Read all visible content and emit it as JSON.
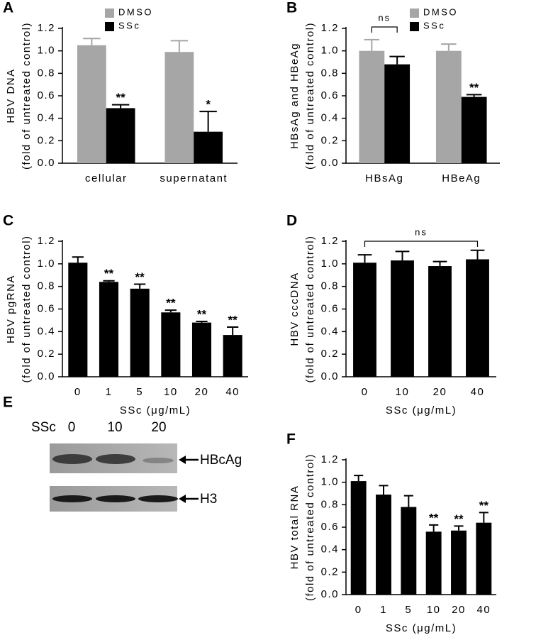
{
  "chart_data": [
    {
      "type": "bar",
      "panel": "A",
      "ylabel": "HBV DNA",
      "ylabel2": "(fold of untreated control)",
      "categories": [
        "cellular",
        "supernatant"
      ],
      "series": [
        {
          "name": "DMSO",
          "color": "#a6a6a6",
          "values": [
            1.05,
            0.99
          ],
          "errors": [
            0.06,
            0.1
          ],
          "significance": [
            null,
            null
          ]
        },
        {
          "name": "SSc",
          "color": "#000000",
          "values": [
            0.49,
            0.28
          ],
          "errors": [
            0.03,
            0.18
          ],
          "significance": [
            "**",
            "*"
          ]
        }
      ],
      "ylim": [
        0,
        1.2
      ],
      "yticks": [
        {
          "value": 0,
          "label": "0.0"
        },
        {
          "value": 0.2,
          "label": "0.2"
        },
        {
          "value": 0.4,
          "label": "0.4"
        },
        {
          "value": 0.6,
          "label": "0.6"
        },
        {
          "value": 0.8,
          "label": "0.8"
        },
        {
          "value": 1,
          "label": "1.0"
        },
        {
          "value": 1.2,
          "label": "1.2"
        }
      ],
      "legend": true
    },
    {
      "type": "bar",
      "panel": "B",
      "ylabel": "HBsAg and HBeAg",
      "ylabel2": "(fold of untreated control)",
      "categories": [
        "HBsAg",
        "HBeAg"
      ],
      "series": [
        {
          "name": "DMSO",
          "color": "#a6a6a6",
          "values": [
            1.0,
            1.0
          ],
          "errors": [
            0.1,
            0.06
          ],
          "significance": [
            null,
            null
          ]
        },
        {
          "name": "SSc",
          "color": "#000000",
          "values": [
            0.88,
            0.59
          ],
          "errors": [
            0.07,
            0.02
          ],
          "significance": [
            null,
            "**"
          ]
        }
      ],
      "ylim": [
        0,
        1.2
      ],
      "yticks": [
        {
          "value": 0,
          "label": "0.0"
        },
        {
          "value": 0.2,
          "label": "0.2"
        },
        {
          "value": 0.4,
          "label": "0.4"
        },
        {
          "value": 0.6,
          "label": "0.6"
        },
        {
          "value": 0.8,
          "label": "0.8"
        },
        {
          "value": 1,
          "label": "1.0"
        },
        {
          "value": 1.2,
          "label": "1.2"
        }
      ],
      "legend": true,
      "bracket_label": "ns"
    },
    {
      "type": "bar",
      "panel": "C",
      "ylabel": "HBV pgRNA",
      "ylabel2": "(fold of untreated control)",
      "xlabel": "SSc (μg/mL)",
      "categories": [
        "0",
        "1",
        "5",
        "10",
        "20",
        "40"
      ],
      "series": [
        {
          "color": "#000000",
          "values": [
            1.01,
            0.84,
            0.78,
            0.57,
            0.48,
            0.37
          ],
          "errors": [
            0.05,
            0.01,
            0.04,
            0.02,
            0.01,
            0.07
          ],
          "significance": [
            null,
            "**",
            "**",
            "**",
            "**",
            "**"
          ]
        }
      ],
      "ylim": [
        0,
        1.2
      ],
      "yticks": [
        {
          "value": 0,
          "label": "0.0"
        },
        {
          "value": 0.2,
          "label": "0.2"
        },
        {
          "value": 0.4,
          "label": "0.4"
        },
        {
          "value": 0.6,
          "label": "0.6"
        },
        {
          "value": 0.8,
          "label": "0.8"
        },
        {
          "value": 1,
          "label": "1.0"
        },
        {
          "value": 1.2,
          "label": "1.2"
        }
      ],
      "legend": false
    },
    {
      "type": "bar",
      "panel": "D",
      "ylabel": "HBV cccDNA",
      "ylabel2": "(fold of untreated control)",
      "xlabel": "SSc (μg/mL)",
      "categories": [
        "0",
        "10",
        "20",
        "40"
      ],
      "series": [
        {
          "color": "#000000",
          "values": [
            1.01,
            1.03,
            0.98,
            1.04
          ],
          "errors": [
            0.07,
            0.08,
            0.04,
            0.08
          ],
          "significance": [
            null,
            null,
            null,
            null
          ]
        }
      ],
      "ylim": [
        0,
        1.2
      ],
      "yticks": [
        {
          "value": 0,
          "label": "0.0"
        },
        {
          "value": 0.2,
          "label": "0.2"
        },
        {
          "value": 0.4,
          "label": "0.4"
        },
        {
          "value": 0.6,
          "label": "0.6"
        },
        {
          "value": 0.8,
          "label": "0.8"
        },
        {
          "value": 1,
          "label": "1.0"
        },
        {
          "value": 1.2,
          "label": "1.2"
        }
      ],
      "legend": false,
      "bracket_label": "ns"
    },
    {
      "type": "bar",
      "panel": "F",
      "ylabel": "HBV total RNA",
      "ylabel2": "(fold of untreated control)",
      "xlabel": "SSc (μg/mL)",
      "categories": [
        "0",
        "1",
        "5",
        "10",
        "20",
        "40"
      ],
      "series": [
        {
          "color": "#000000",
          "values": [
            1.01,
            0.89,
            0.78,
            0.56,
            0.57,
            0.64
          ],
          "errors": [
            0.05,
            0.08,
            0.1,
            0.06,
            0.04,
            0.09
          ],
          "significance": [
            null,
            null,
            null,
            "**",
            "**",
            "**"
          ]
        }
      ],
      "ylim": [
        0,
        1.2
      ],
      "yticks": [
        {
          "value": 0,
          "label": "0.0"
        },
        {
          "value": 0.2,
          "label": "0.2"
        },
        {
          "value": 0.4,
          "label": "0.4"
        },
        {
          "value": 0.6,
          "label": "0.6"
        },
        {
          "value": 0.8,
          "label": "0.8"
        },
        {
          "value": 1,
          "label": "1.0"
        },
        {
          "value": 1.2,
          "label": "1.2"
        }
      ],
      "legend": false
    }
  ],
  "blot": {
    "panel": "E",
    "treatment_label": "SSc",
    "doses": [
      "0",
      "10",
      "20"
    ],
    "bands": [
      "HBcAg",
      "H3"
    ]
  }
}
